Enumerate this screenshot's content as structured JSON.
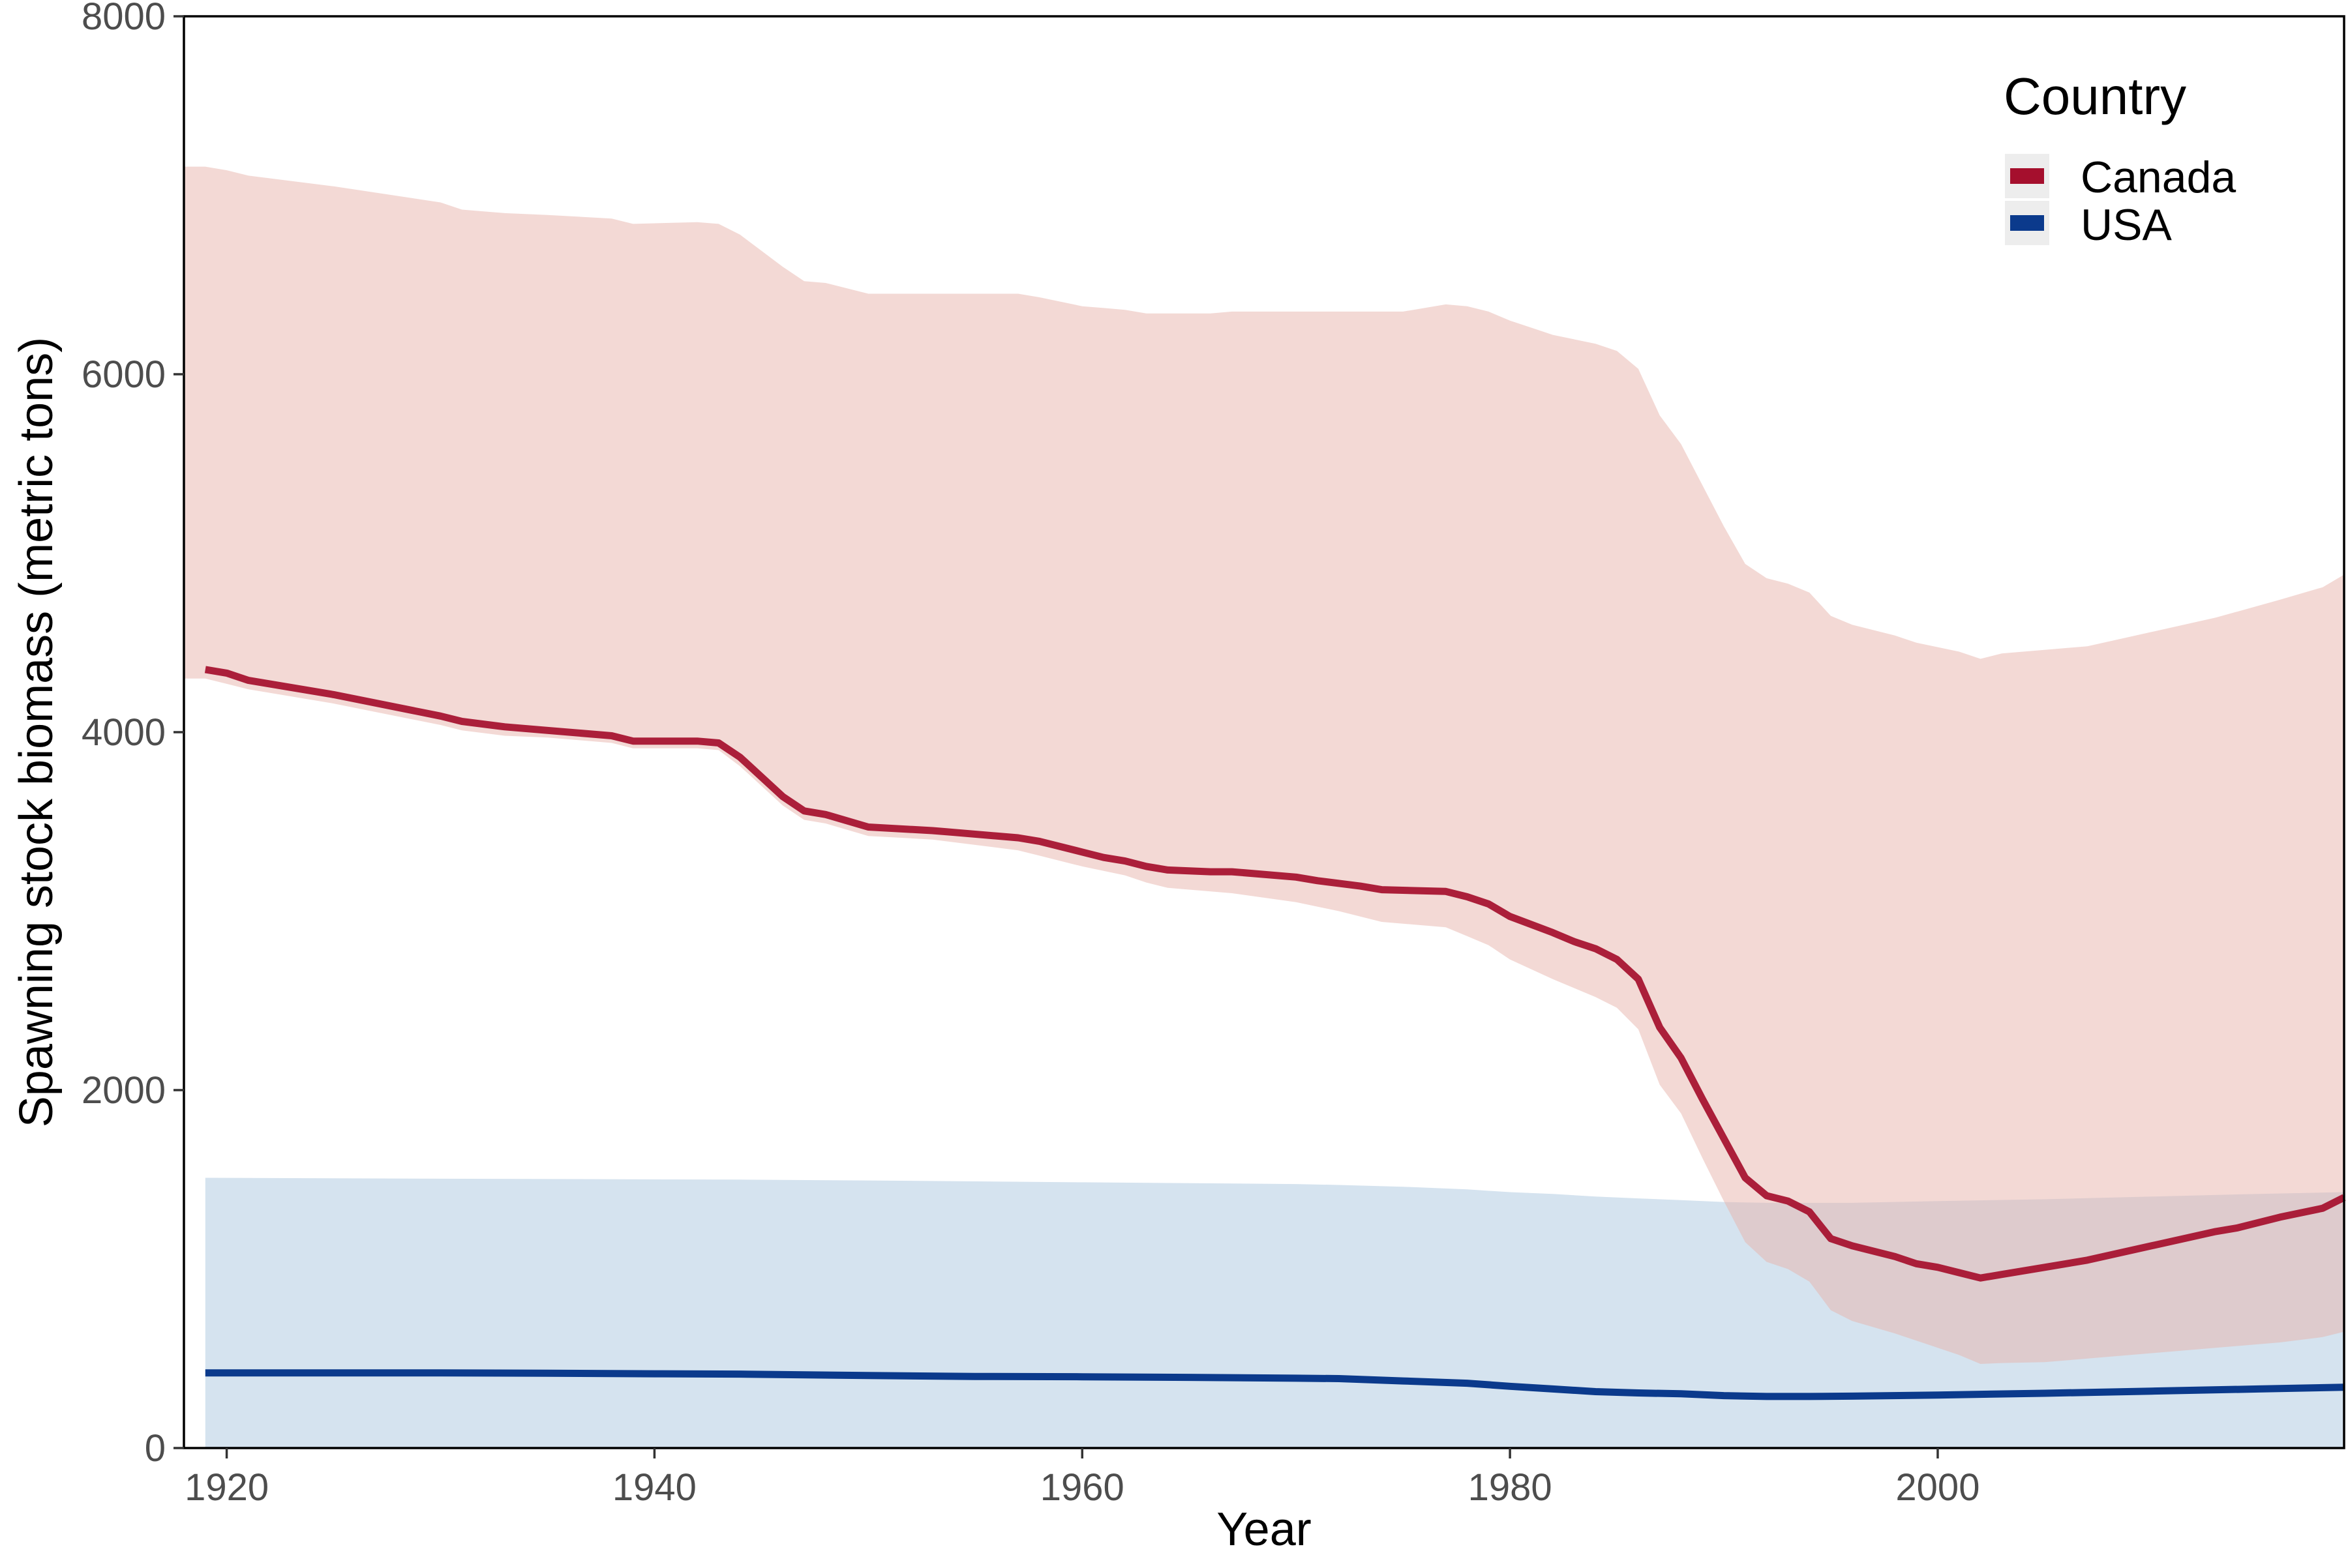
{
  "chart_data": {
    "type": "area",
    "title": "",
    "xlabel": "Year",
    "ylabel": "Spawning stock biomass (metric tons)",
    "xlim": [
      1918,
      2019
    ],
    "ylim": [
      0,
      8000
    ],
    "x_ticks": [
      1920,
      1940,
      1960,
      1980,
      2000
    ],
    "y_ticks": [
      0,
      2000,
      4000,
      6000,
      8000
    ],
    "grid": false,
    "legend": {
      "title": "Country",
      "position": "top-right"
    },
    "series": [
      {
        "name": "Canada",
        "color": "#A50F2D",
        "band_color": "#F4DAD6",
        "line": [
          [
            1919,
            4350
          ],
          [
            1920,
            4330
          ],
          [
            1921,
            4290
          ],
          [
            1925,
            4210
          ],
          [
            1930,
            4090
          ],
          [
            1931,
            4060
          ],
          [
            1933,
            4030
          ],
          [
            1935,
            4010
          ],
          [
            1938,
            3980
          ],
          [
            1939,
            3950
          ],
          [
            1942,
            3950
          ],
          [
            1943,
            3940
          ],
          [
            1944,
            3860
          ],
          [
            1946,
            3640
          ],
          [
            1947,
            3560
          ],
          [
            1948,
            3540
          ],
          [
            1950,
            3470
          ],
          [
            1953,
            3450
          ],
          [
            1954,
            3440
          ],
          [
            1957,
            3410
          ],
          [
            1958,
            3390
          ],
          [
            1960,
            3330
          ],
          [
            1961,
            3300
          ],
          [
            1962,
            3280
          ],
          [
            1963,
            3250
          ],
          [
            1964,
            3230
          ],
          [
            1966,
            3220
          ],
          [
            1967,
            3220
          ],
          [
            1970,
            3190
          ],
          [
            1971,
            3170
          ],
          [
            1973,
            3140
          ],
          [
            1974,
            3120
          ],
          [
            1977,
            3110
          ],
          [
            1978,
            3080
          ],
          [
            1979,
            3040
          ],
          [
            1980,
            2970
          ],
          [
            1982,
            2880
          ],
          [
            1983,
            2830
          ],
          [
            1984,
            2790
          ],
          [
            1985,
            2730
          ],
          [
            1986,
            2620
          ],
          [
            1987,
            2350
          ],
          [
            1988,
            2180
          ],
          [
            1989,
            1950
          ],
          [
            1990,
            1730
          ],
          [
            1991,
            1510
          ],
          [
            1992,
            1410
          ],
          [
            1993,
            1380
          ],
          [
            1994,
            1320
          ],
          [
            1995,
            1170
          ],
          [
            1996,
            1130
          ],
          [
            1998,
            1070
          ],
          [
            1999,
            1030
          ],
          [
            2000,
            1010
          ],
          [
            2001,
            980
          ],
          [
            2002,
            950
          ],
          [
            2003,
            970
          ],
          [
            2005,
            1010
          ],
          [
            2007,
            1050
          ],
          [
            2010,
            1130
          ],
          [
            2013,
            1210
          ],
          [
            2014,
            1230
          ],
          [
            2016,
            1290
          ],
          [
            2018,
            1340
          ],
          [
            2019,
            1400
          ]
        ],
        "upper": [
          [
            1918,
            7160
          ],
          [
            1919,
            7160
          ],
          [
            1920,
            7140
          ],
          [
            1921,
            7110
          ],
          [
            1925,
            7050
          ],
          [
            1930,
            6960
          ],
          [
            1931,
            6920
          ],
          [
            1933,
            6900
          ],
          [
            1935,
            6890
          ],
          [
            1938,
            6870
          ],
          [
            1939,
            6840
          ],
          [
            1942,
            6850
          ],
          [
            1943,
            6840
          ],
          [
            1944,
            6780
          ],
          [
            1946,
            6600
          ],
          [
            1947,
            6520
          ],
          [
            1948,
            6510
          ],
          [
            1950,
            6450
          ],
          [
            1953,
            6450
          ],
          [
            1957,
            6450
          ],
          [
            1958,
            6430
          ],
          [
            1960,
            6380
          ],
          [
            1961,
            6370
          ],
          [
            1962,
            6360
          ],
          [
            1963,
            6340
          ],
          [
            1966,
            6340
          ],
          [
            1967,
            6350
          ],
          [
            1972,
            6350
          ],
          [
            1975,
            6350
          ],
          [
            1977,
            6390
          ],
          [
            1978,
            6380
          ],
          [
            1979,
            6350
          ],
          [
            1980,
            6300
          ],
          [
            1981,
            6260
          ],
          [
            1982,
            6220
          ],
          [
            1984,
            6170
          ],
          [
            1985,
            6130
          ],
          [
            1986,
            6030
          ],
          [
            1987,
            5770
          ],
          [
            1988,
            5610
          ],
          [
            1989,
            5380
          ],
          [
            1990,
            5150
          ],
          [
            1991,
            4940
          ],
          [
            1992,
            4860
          ],
          [
            1993,
            4830
          ],
          [
            1994,
            4780
          ],
          [
            1995,
            4650
          ],
          [
            1996,
            4600
          ],
          [
            1998,
            4540
          ],
          [
            1999,
            4500
          ],
          [
            2001,
            4450
          ],
          [
            2002,
            4410
          ],
          [
            2003,
            4440
          ],
          [
            2005,
            4460
          ],
          [
            2007,
            4480
          ],
          [
            2010,
            4560
          ],
          [
            2013,
            4640
          ],
          [
            2016,
            4740
          ],
          [
            2018,
            4810
          ],
          [
            2019,
            4880
          ]
        ],
        "lower": [
          [
            1918,
            4300
          ],
          [
            1919,
            4300
          ],
          [
            1920,
            4270
          ],
          [
            1921,
            4240
          ],
          [
            1925,
            4160
          ],
          [
            1930,
            4040
          ],
          [
            1931,
            4010
          ],
          [
            1933,
            3980
          ],
          [
            1935,
            3970
          ],
          [
            1938,
            3940
          ],
          [
            1939,
            3910
          ],
          [
            1942,
            3910
          ],
          [
            1943,
            3900
          ],
          [
            1944,
            3810
          ],
          [
            1946,
            3590
          ],
          [
            1947,
            3510
          ],
          [
            1948,
            3490
          ],
          [
            1950,
            3420
          ],
          [
            1953,
            3400
          ],
          [
            1957,
            3340
          ],
          [
            1958,
            3310
          ],
          [
            1960,
            3250
          ],
          [
            1962,
            3200
          ],
          [
            1963,
            3160
          ],
          [
            1964,
            3130
          ],
          [
            1966,
            3110
          ],
          [
            1967,
            3100
          ],
          [
            1970,
            3050
          ],
          [
            1972,
            3000
          ],
          [
            1973,
            2970
          ],
          [
            1974,
            2940
          ],
          [
            1977,
            2910
          ],
          [
            1978,
            2860
          ],
          [
            1979,
            2810
          ],
          [
            1980,
            2730
          ],
          [
            1982,
            2620
          ],
          [
            1983,
            2570
          ],
          [
            1984,
            2520
          ],
          [
            1985,
            2460
          ],
          [
            1986,
            2340
          ],
          [
            1987,
            2030
          ],
          [
            1988,
            1870
          ],
          [
            1989,
            1620
          ],
          [
            1990,
            1380
          ],
          [
            1991,
            1150
          ],
          [
            1992,
            1040
          ],
          [
            1993,
            1000
          ],
          [
            1994,
            930
          ],
          [
            1995,
            770
          ],
          [
            1996,
            710
          ],
          [
            1998,
            640
          ],
          [
            1999,
            600
          ],
          [
            2000,
            560
          ],
          [
            2001,
            520
          ],
          [
            2002,
            470
          ],
          [
            2003,
            475
          ],
          [
            2005,
            480
          ],
          [
            2007,
            500
          ],
          [
            2010,
            530
          ],
          [
            2013,
            560
          ],
          [
            2016,
            590
          ],
          [
            2018,
            620
          ],
          [
            2019,
            650
          ]
        ]
      },
      {
        "name": "USA",
        "color": "#0B3A8C",
        "band_color": "#D5E3EF",
        "line": [
          [
            1919,
            420
          ],
          [
            1925,
            420
          ],
          [
            1930,
            420
          ],
          [
            1935,
            418
          ],
          [
            1940,
            415
          ],
          [
            1944,
            413
          ],
          [
            1950,
            405
          ],
          [
            1955,
            400
          ],
          [
            1960,
            398
          ],
          [
            1965,
            395
          ],
          [
            1970,
            390
          ],
          [
            1972,
            388
          ],
          [
            1975,
            375
          ],
          [
            1978,
            362
          ],
          [
            1980,
            345
          ],
          [
            1982,
            330
          ],
          [
            1984,
            315
          ],
          [
            1986,
            308
          ],
          [
            1988,
            303
          ],
          [
            1990,
            293
          ],
          [
            1992,
            288
          ],
          [
            1994,
            288
          ],
          [
            1996,
            290
          ],
          [
            2000,
            296
          ],
          [
            2005,
            306
          ],
          [
            2010,
            318
          ],
          [
            2015,
            330
          ],
          [
            2019,
            340
          ]
        ],
        "upper": [
          [
            1919,
            1510
          ],
          [
            1930,
            1505
          ],
          [
            1944,
            1500
          ],
          [
            1950,
            1495
          ],
          [
            1960,
            1485
          ],
          [
            1970,
            1475
          ],
          [
            1972,
            1470
          ],
          [
            1975,
            1460
          ],
          [
            1978,
            1445
          ],
          [
            1980,
            1430
          ],
          [
            1982,
            1420
          ],
          [
            1984,
            1405
          ],
          [
            1986,
            1395
          ],
          [
            1988,
            1385
          ],
          [
            1990,
            1375
          ],
          [
            1992,
            1370
          ],
          [
            1994,
            1370
          ],
          [
            1996,
            1370
          ],
          [
            2000,
            1380
          ],
          [
            2005,
            1390
          ],
          [
            2010,
            1405
          ],
          [
            2015,
            1420
          ],
          [
            2019,
            1430
          ]
        ],
        "lower": [
          [
            1919,
            0
          ],
          [
            2019,
            0
          ]
        ]
      }
    ]
  }
}
